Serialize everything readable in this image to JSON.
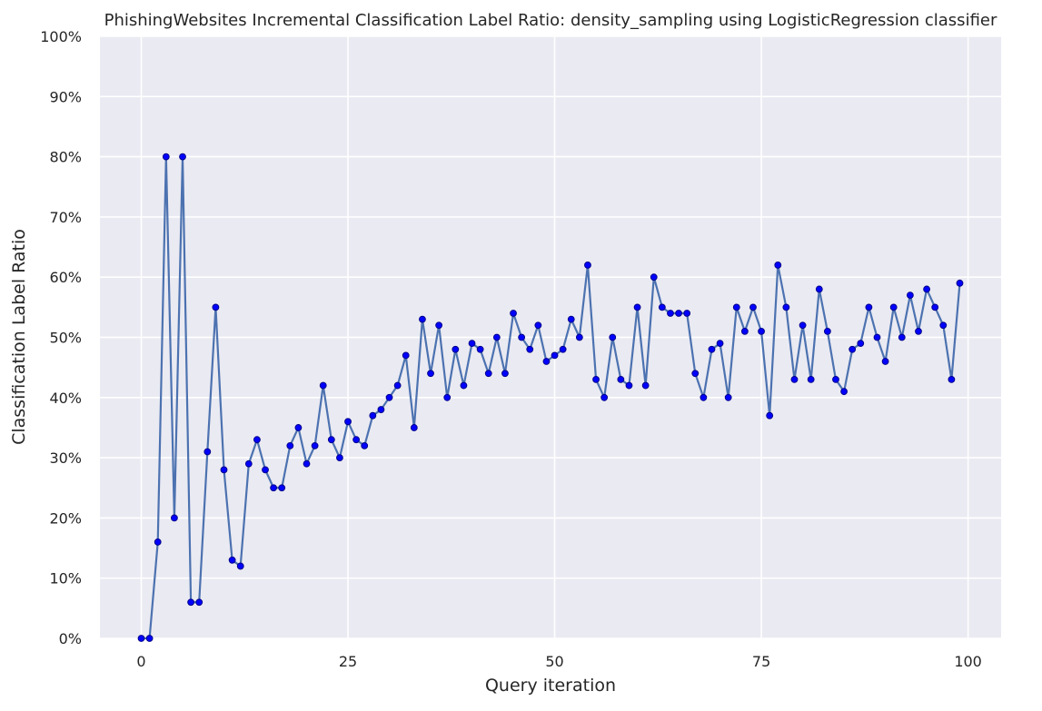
{
  "chart_data": {
    "type": "line",
    "title": "PhishingWebsites Incremental Classification Label Ratio: density_sampling using LogisticRegression classifier",
    "xlabel": "Query iteration",
    "ylabel": "Classification Label Ratio",
    "xlim": [
      -5,
      104
    ],
    "ylim": [
      0,
      100
    ],
    "x_ticks": [
      0,
      25,
      50,
      75,
      100
    ],
    "y_ticks": [
      0,
      10,
      20,
      30,
      40,
      50,
      60,
      70,
      80,
      90,
      100
    ],
    "y_tick_format": "percent",
    "grid": true,
    "background": "#eaeaf2",
    "grid_color": "#ffffff",
    "line_color": "#4c72b0",
    "marker_color": "#0000ff",
    "marker_edge_color": "#00008b",
    "series": [
      {
        "x": [
          0,
          1,
          2,
          3,
          4,
          5,
          6,
          7,
          8,
          9,
          10,
          11,
          12,
          13,
          14,
          15,
          16,
          17,
          18,
          19,
          20,
          21,
          22,
          23,
          24,
          25,
          26,
          27,
          28,
          29,
          30,
          31,
          32,
          33,
          34,
          35,
          36,
          37,
          38,
          39,
          40,
          41,
          42,
          43,
          44,
          45,
          46,
          47,
          48,
          49,
          50,
          51,
          52,
          53,
          54,
          55,
          56,
          57,
          58,
          59,
          60,
          61,
          62,
          63,
          64,
          65,
          66,
          67,
          68,
          69,
          70,
          71,
          72,
          73,
          74,
          75,
          76,
          77,
          78,
          79,
          80,
          81,
          82,
          83,
          84,
          85,
          86,
          87,
          88,
          89,
          90,
          91,
          92,
          93,
          94,
          95,
          96,
          97,
          98,
          99
        ],
        "values": [
          0,
          0,
          16,
          80,
          20,
          80,
          6,
          6,
          31,
          55,
          28,
          13,
          12,
          29,
          33,
          28,
          25,
          25,
          32,
          35,
          29,
          32,
          42,
          33,
          30,
          36,
          33,
          32,
          37,
          38,
          40,
          42,
          47,
          35,
          53,
          44,
          52,
          40,
          48,
          42,
          49,
          48,
          44,
          50,
          44,
          54,
          50,
          48,
          52,
          46,
          47,
          48,
          53,
          50,
          62,
          43,
          40,
          50,
          43,
          42,
          55,
          42,
          60,
          55,
          54,
          54,
          54,
          44,
          40,
          48,
          49,
          40,
          55,
          51,
          55,
          51,
          37,
          62,
          55,
          43,
          52,
          43,
          58,
          51,
          43,
          41,
          48,
          49,
          55,
          50,
          46,
          55,
          50,
          57,
          51,
          58,
          55,
          52,
          43,
          59
        ]
      }
    ]
  }
}
